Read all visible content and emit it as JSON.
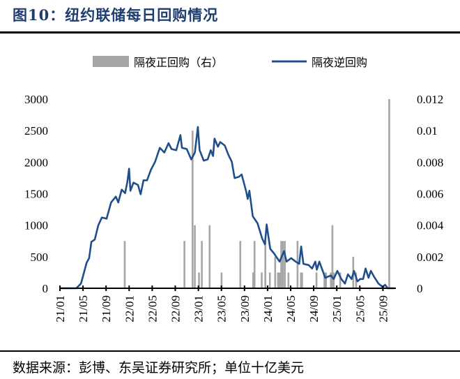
{
  "header": {
    "title": "图10：纽约联储每日回购情况"
  },
  "footer": {
    "source": "数据来源：彭博、东吴证券研究所；单位十亿美元"
  },
  "chart_data": {
    "type": "bar+line",
    "title": "",
    "legend_position": "top",
    "grid": false,
    "x_tick_labels": [
      "21/01",
      "21/05",
      "21/09",
      "22/01",
      "22/05",
      "22/09",
      "23/01",
      "23/05",
      "23/09",
      "24/01",
      "24/05",
      "24/09",
      "25/01",
      "25/05",
      "25/09"
    ],
    "x_range": [
      "2021-01-01",
      "2025-11-05"
    ],
    "y_left": {
      "ylim": [
        0,
        3000
      ],
      "ticks": [
        "0",
        "500",
        "1000",
        "1500",
        "2000",
        "2500",
        "3000"
      ]
    },
    "y_right": {
      "ylim": [
        0,
        0.012
      ],
      "ticks": [
        "0",
        "0.002",
        "0.004",
        "0.006",
        "0.008",
        "0.01",
        "0.012"
      ]
    },
    "series": [
      {
        "name": "隔夜正回购（右）",
        "type": "bar",
        "axis": "right",
        "color": "#a6a6a6",
        "points": [
          [
            "2021-12-09",
            0.003
          ],
          [
            "2022-10-20",
            0.003
          ],
          [
            "2022-12-02",
            0.01
          ],
          [
            "2022-12-14",
            0.004
          ],
          [
            "2023-01-05",
            0.001
          ],
          [
            "2023-01-20",
            0.003
          ],
          [
            "2023-03-02",
            0.004
          ],
          [
            "2023-05-04",
            0.001
          ],
          [
            "2023-08-11",
            0.003
          ],
          [
            "2023-10-18",
            0.001
          ],
          [
            "2023-10-25",
            0.003
          ],
          [
            "2023-12-02",
            0.001
          ],
          [
            "2023-12-21",
            0.003
          ],
          [
            "2024-01-14",
            0.001
          ],
          [
            "2024-02-11",
            0.002
          ],
          [
            "2024-02-26",
            0.001
          ],
          [
            "2024-03-05",
            0.001
          ],
          [
            "2024-03-14",
            0.003
          ],
          [
            "2024-03-23",
            0.003
          ],
          [
            "2024-04-02",
            0.003
          ],
          [
            "2024-04-21",
            0.001
          ],
          [
            "2024-06-08",
            0.003
          ],
          [
            "2024-06-26",
            0.001
          ],
          [
            "2024-07-02",
            0.001
          ],
          [
            "2024-09-16",
            0.001
          ],
          [
            "2024-10-28",
            0.001
          ],
          [
            "2024-11-05",
            0.001
          ],
          [
            "2024-12-01",
            0.001
          ],
          [
            "2024-12-09",
            0.004
          ],
          [
            "2024-12-16",
            0.001
          ],
          [
            "2025-01-19",
            0.001
          ],
          [
            "2025-03-29",
            0.002
          ],
          [
            "2025-04-13",
            0.001
          ],
          [
            "2025-10-05",
            0.012
          ]
        ]
      },
      {
        "name": "隔夜逆回购",
        "type": "line",
        "axis": "left",
        "color": "#1f4e8c",
        "points": [
          [
            "2021-01-01",
            0
          ],
          [
            "2021-03-28",
            0
          ],
          [
            "2021-04-22",
            74
          ],
          [
            "2021-05-02",
            184
          ],
          [
            "2021-05-22",
            405
          ],
          [
            "2021-06-04",
            478
          ],
          [
            "2021-06-16",
            736
          ],
          [
            "2021-07-04",
            773
          ],
          [
            "2021-07-22",
            994
          ],
          [
            "2021-08-10",
            1123
          ],
          [
            "2021-09-04",
            1104
          ],
          [
            "2021-09-28",
            1362
          ],
          [
            "2021-10-23",
            1454
          ],
          [
            "2021-11-05",
            1362
          ],
          [
            "2021-11-23",
            1564
          ],
          [
            "2021-12-11",
            1509
          ],
          [
            "2021-12-23",
            1693
          ],
          [
            "2022-01-01",
            1896
          ],
          [
            "2022-01-08",
            1546
          ],
          [
            "2022-01-24",
            1675
          ],
          [
            "2022-02-17",
            1638
          ],
          [
            "2022-03-03",
            1491
          ],
          [
            "2022-03-18",
            1712
          ],
          [
            "2022-04-06",
            1712
          ],
          [
            "2022-04-26",
            1877
          ],
          [
            "2022-05-18",
            2006
          ],
          [
            "2022-06-12",
            2227
          ],
          [
            "2022-07-06",
            2153
          ],
          [
            "2022-07-28",
            2301
          ],
          [
            "2022-08-13",
            2208
          ],
          [
            "2022-09-07",
            2190
          ],
          [
            "2022-09-29",
            2430
          ],
          [
            "2022-10-07",
            2227
          ],
          [
            "2022-11-01",
            2208
          ],
          [
            "2022-11-25",
            2043
          ],
          [
            "2022-12-14",
            2153
          ],
          [
            "2022-12-30",
            2558
          ],
          [
            "2023-01-08",
            2190
          ],
          [
            "2023-01-30",
            2025
          ],
          [
            "2023-02-20",
            2043
          ],
          [
            "2023-03-08",
            2190
          ],
          [
            "2023-03-20",
            2098
          ],
          [
            "2023-03-28",
            2374
          ],
          [
            "2023-04-15",
            2245
          ],
          [
            "2023-04-27",
            2319
          ],
          [
            "2023-05-21",
            2264
          ],
          [
            "2023-06-09",
            2117
          ],
          [
            "2023-06-27",
            2006
          ],
          [
            "2023-07-12",
            1748
          ],
          [
            "2023-08-03",
            1767
          ],
          [
            "2023-08-18",
            1804
          ],
          [
            "2023-09-10",
            1546
          ],
          [
            "2023-09-19",
            1417
          ],
          [
            "2023-09-28",
            1546
          ],
          [
            "2023-10-16",
            1141
          ],
          [
            "2023-11-10",
            1031
          ],
          [
            "2023-12-04",
            791
          ],
          [
            "2023-12-19",
            699
          ],
          [
            "2023-12-28",
            1012
          ],
          [
            "2024-01-16",
            626
          ],
          [
            "2024-02-05",
            552
          ],
          [
            "2024-03-05",
            423
          ],
          [
            "2024-03-29",
            589
          ],
          [
            "2024-04-11",
            423
          ],
          [
            "2024-05-05",
            478
          ],
          [
            "2024-05-29",
            423
          ],
          [
            "2024-06-17",
            387
          ],
          [
            "2024-06-27",
            663
          ],
          [
            "2024-07-09",
            387
          ],
          [
            "2024-08-06",
            368
          ],
          [
            "2024-08-24",
            313
          ],
          [
            "2024-09-10",
            423
          ],
          [
            "2024-09-18",
            294
          ],
          [
            "2024-10-01",
            423
          ],
          [
            "2024-11-01",
            166
          ],
          [
            "2024-12-01",
            203
          ],
          [
            "2024-12-16",
            147
          ],
          [
            "2025-01-04",
            276
          ],
          [
            "2025-01-25",
            147
          ],
          [
            "2025-02-13",
            74
          ],
          [
            "2025-03-01",
            221
          ],
          [
            "2025-03-20",
            147
          ],
          [
            "2025-04-02",
            276
          ],
          [
            "2025-04-20",
            110
          ],
          [
            "2025-05-05",
            147
          ],
          [
            "2025-05-20",
            147
          ],
          [
            "2025-06-02",
            313
          ],
          [
            "2025-06-18",
            166
          ],
          [
            "2025-06-30",
            276
          ],
          [
            "2025-07-17",
            184
          ],
          [
            "2025-08-09",
            74
          ],
          [
            "2025-09-01",
            18
          ],
          [
            "2025-09-13",
            55
          ],
          [
            "2025-09-27",
            0
          ],
          [
            "2025-11-01",
            0
          ]
        ]
      }
    ]
  }
}
